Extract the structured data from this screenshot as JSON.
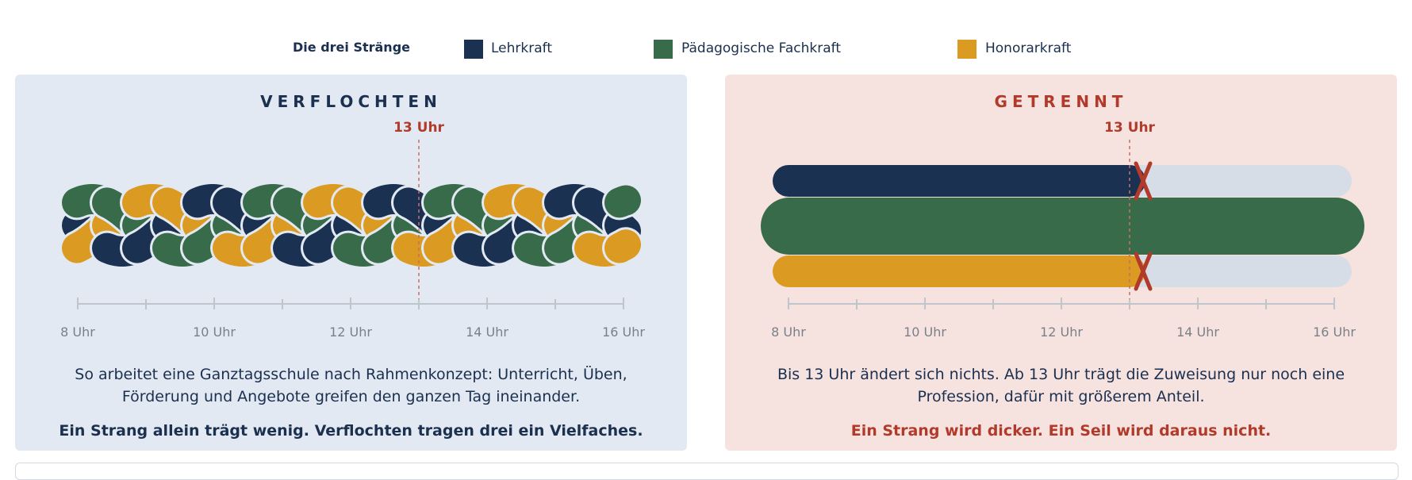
{
  "legend": {
    "title": "Die drei Stränge",
    "items": [
      {
        "label": "Lehrkraft",
        "color": "#1b3152"
      },
      {
        "label": "Pädagogische Fachkraft",
        "color": "#386b4a"
      },
      {
        "label": "Honorarkraft",
        "color": "#db9b22"
      }
    ]
  },
  "left": {
    "title": "VERFLOCHTEN",
    "marker_label": "13 Uhr",
    "axis_labels": [
      "8 Uhr",
      "10 Uhr",
      "12 Uhr",
      "14 Uhr",
      "16 Uhr"
    ],
    "caption": "So arbeitet eine Ganztagsschule nach Rahmenkonzept: Unterricht, Üben, Förderung und Angebote greifen den ganzen Tag ineinander.",
    "punchline": "Ein Strang allein trägt wenig. Verflochten tragen drei ein Vielfaches."
  },
  "right": {
    "title": "GETRENNT",
    "marker_label": "13 Uhr",
    "axis_labels": [
      "8 Uhr",
      "10 Uhr",
      "12 Uhr",
      "14 Uhr",
      "16 Uhr"
    ],
    "caption": "Bis 13 Uhr ändert sich nichts. Ab 13 Uhr trägt die Zuweisung nur noch eine Profession, dafür mit größerem Anteil.",
    "punchline": "Ein Strang wird dicker. Ein Seil wird daraus nicht."
  },
  "timeline": {
    "start_hour": 8,
    "end_hour": 16,
    "marker_hour": 13
  },
  "colors": {
    "navy": "#1b3152",
    "green": "#386b4a",
    "gold": "#db9b22",
    "cut": "#b23a2a",
    "inactive": "#d6dde6",
    "axis": "#c0c5cc"
  }
}
